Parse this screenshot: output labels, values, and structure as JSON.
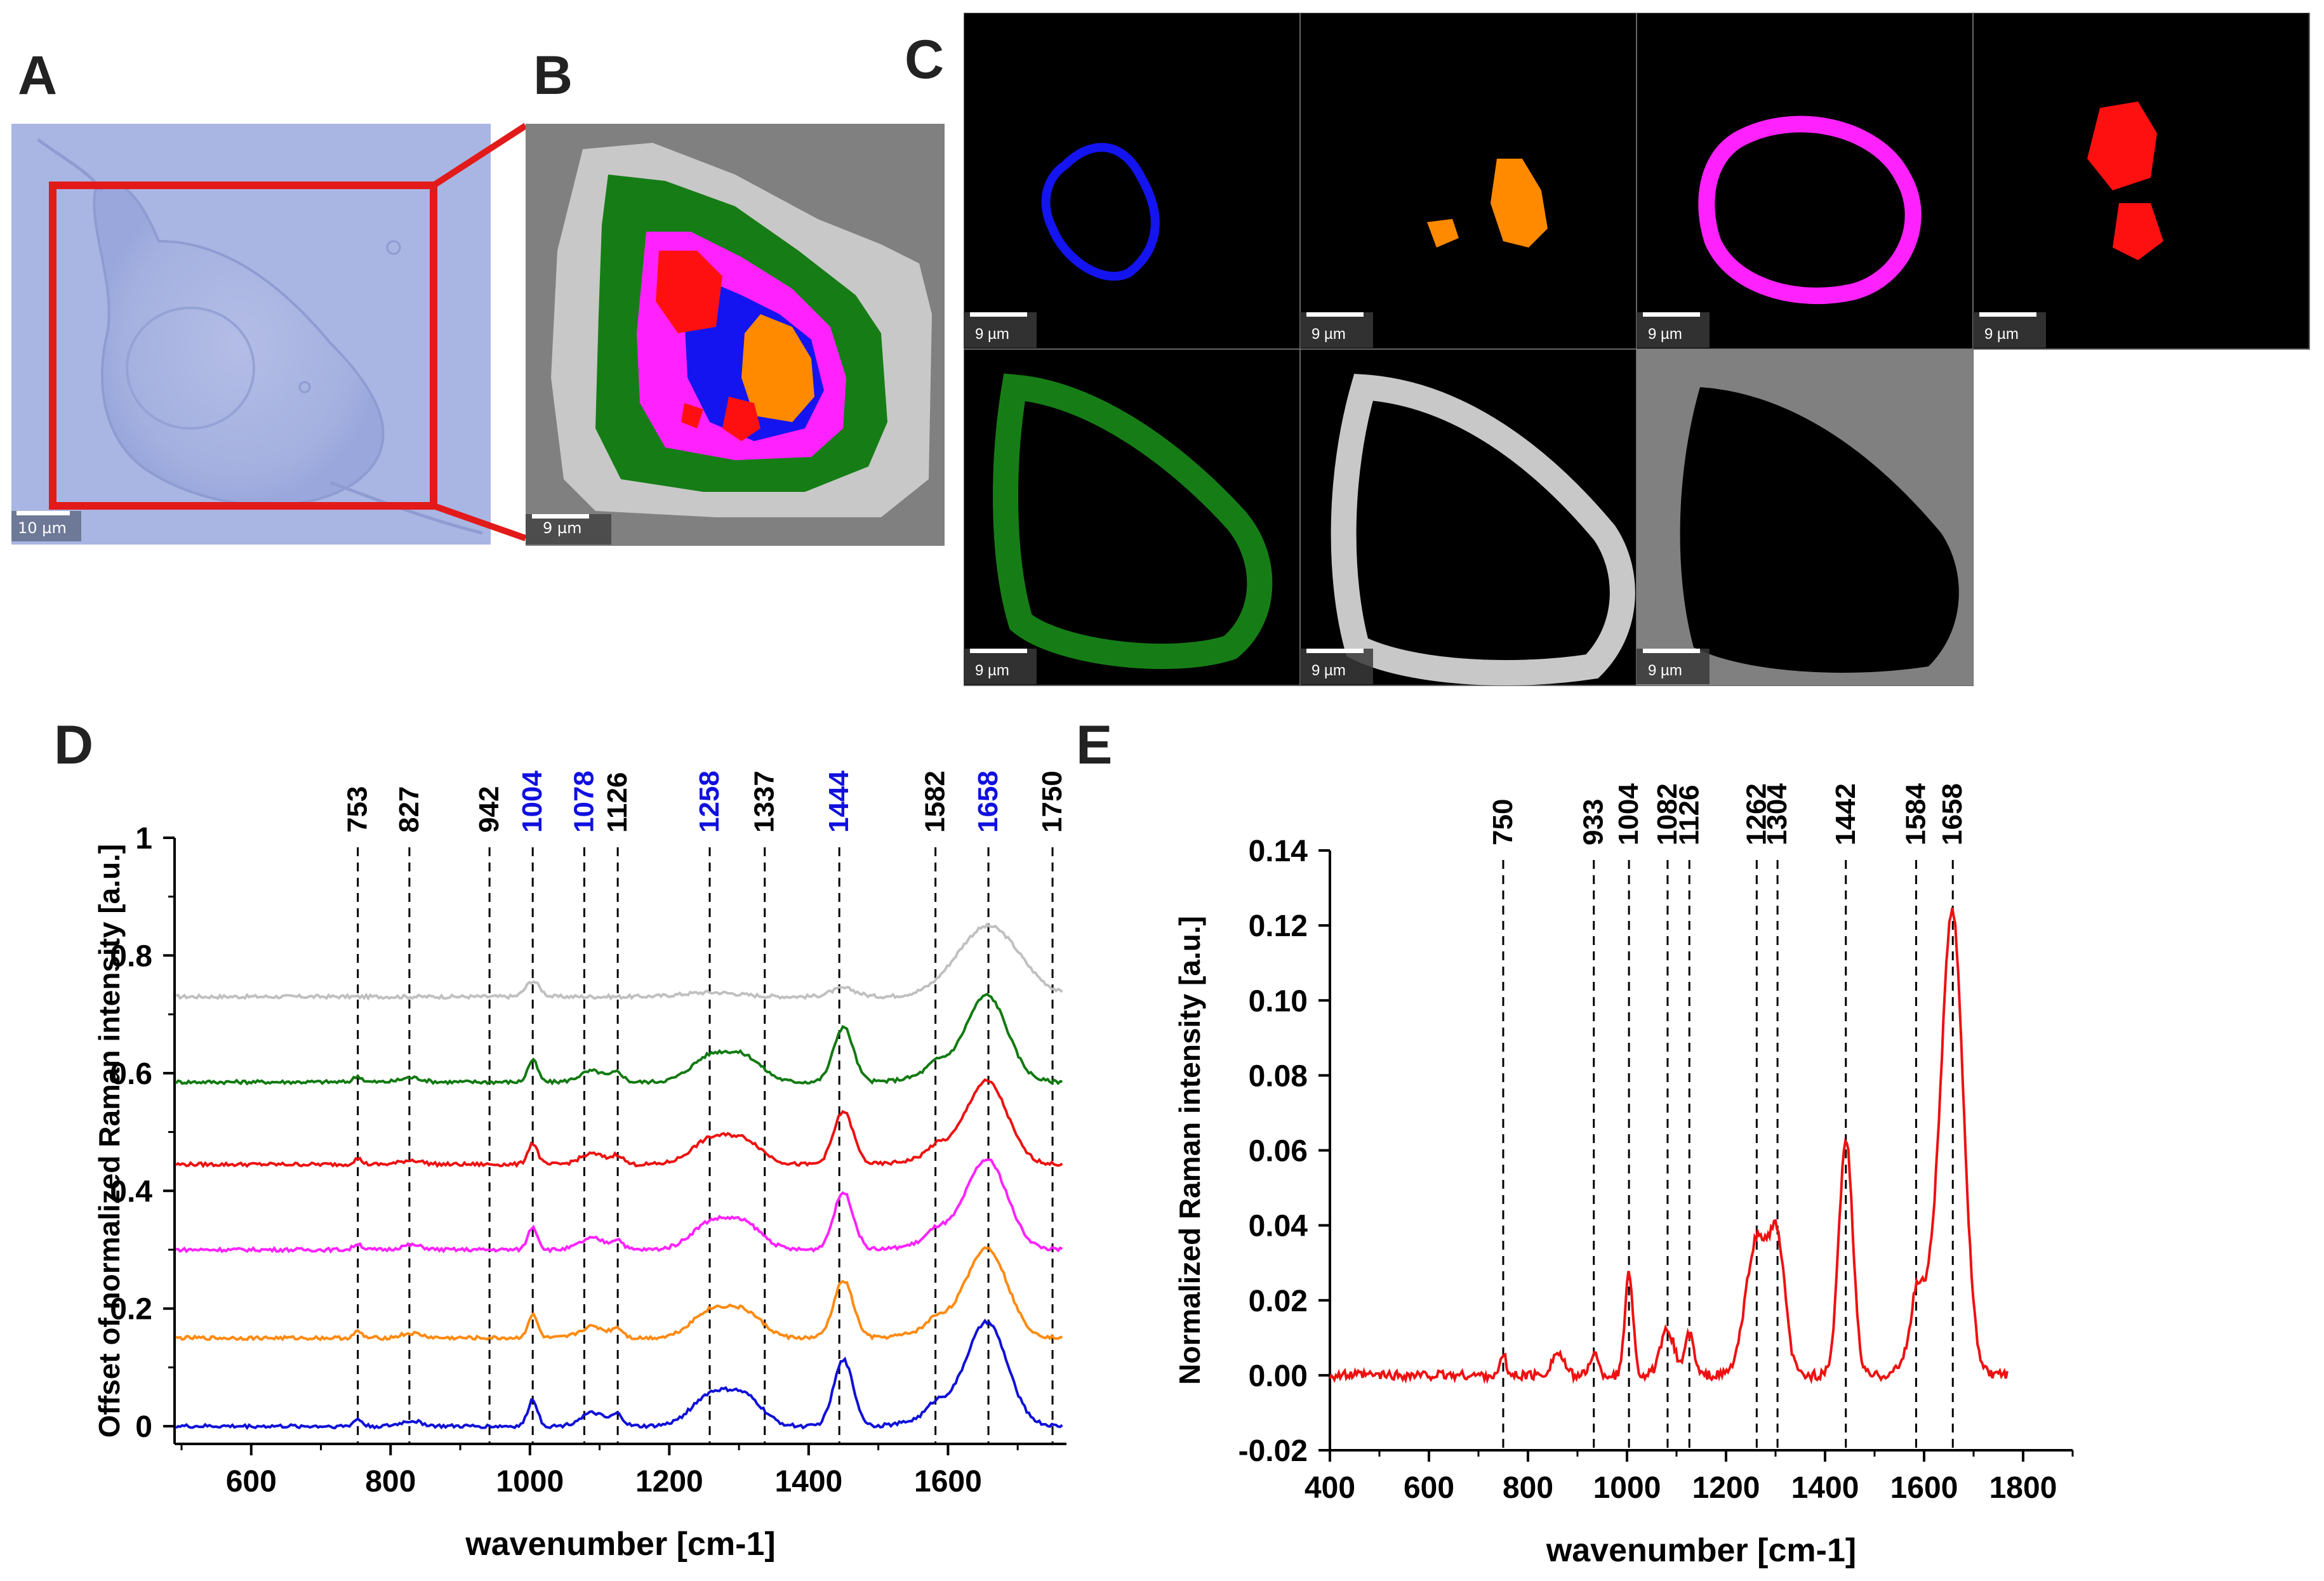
{
  "panels": {
    "A": {
      "label": "A",
      "scalebar": "10 µm",
      "colors": {
        "bg": "#a9b6e3",
        "box": "#e21a1a"
      }
    },
    "B": {
      "label": "B",
      "scalebar": "9 µm"
    },
    "C": {
      "label": "C",
      "tiles": [
        {
          "name": "blue",
          "color": "#1414f0",
          "scalebar": "9 µm"
        },
        {
          "name": "orange",
          "color": "#ff8a00",
          "scalebar": "9 µm"
        },
        {
          "name": "magenta",
          "color": "#ff22ff",
          "scalebar": "9 µm"
        },
        {
          "name": "red",
          "color": "#ff1010",
          "scalebar": "9 µm"
        },
        {
          "name": "green",
          "color": "#167d16",
          "scalebar": "9 µm"
        },
        {
          "name": "lightgray",
          "color": "#c8c8c8",
          "scalebar": "9 µm"
        },
        {
          "name": "gray",
          "color": "#808080",
          "scalebar": "9 µm"
        }
      ]
    },
    "D": {
      "label": "D"
    },
    "E": {
      "label": "E"
    }
  },
  "chart_data": [
    {
      "id": "D",
      "type": "line",
      "xlabel": "wavenumber [cm-1]",
      "ylabel": "Offset of normalized Raman intensity [a.u.]",
      "xlim": [
        490,
        1770
      ],
      "ylim": [
        -0.03,
        1.0
      ],
      "xticks": [
        600,
        800,
        1000,
        1200,
        1400,
        1600
      ],
      "yticks": [
        0,
        0.2,
        0.4,
        0.6,
        0.8,
        1
      ],
      "peak_markers": [
        {
          "label": "753",
          "x": 753,
          "color": "#000000"
        },
        {
          "label": "827",
          "x": 827,
          "color": "#000000"
        },
        {
          "label": "942",
          "x": 942,
          "color": "#000000"
        },
        {
          "label": "1004",
          "x": 1004,
          "color": "#1010e0"
        },
        {
          "label": "1078",
          "x": 1078,
          "color": "#1010e0"
        },
        {
          "label": "1126",
          "x": 1126,
          "color": "#000000"
        },
        {
          "label": "1258",
          "x": 1258,
          "color": "#1010e0"
        },
        {
          "label": "1337",
          "x": 1337,
          "color": "#000000"
        },
        {
          "label": "1444",
          "x": 1444,
          "color": "#1010e0"
        },
        {
          "label": "1582",
          "x": 1582,
          "color": "#000000"
        },
        {
          "label": "1658",
          "x": 1658,
          "color": "#1010e0"
        },
        {
          "label": "1750",
          "x": 1750,
          "color": "#000000"
        }
      ],
      "series": [
        {
          "name": "lightgray",
          "color": "#c0c0c0",
          "offset": 0.73,
          "scale": 0.12
        },
        {
          "name": "green",
          "color": "#127a12",
          "offset": 0.585,
          "scale": 0.125
        },
        {
          "name": "red",
          "color": "#ee1111",
          "offset": 0.445,
          "scale": 0.12
        },
        {
          "name": "magenta",
          "color": "#ff22ff",
          "offset": 0.3,
          "scale": 0.13
        },
        {
          "name": "orange",
          "color": "#ff8a10",
          "offset": 0.15,
          "scale": 0.13
        },
        {
          "name": "blue",
          "color": "#1010d8",
          "offset": 0.0,
          "scale": 0.15
        }
      ]
    },
    {
      "id": "E",
      "type": "line",
      "xlabel": "wavenumber [cm-1]",
      "ylabel": "Normalized Raman intensity [a.u.]",
      "xlim": [
        400,
        1900
      ],
      "ylim": [
        -0.02,
        0.14
      ],
      "xticks": [
        400,
        600,
        800,
        1000,
        1200,
        1400,
        1600,
        1800
      ],
      "yticks": [
        -0.02,
        0.0,
        0.02,
        0.04,
        0.06,
        0.08,
        0.1,
        0.12,
        0.14
      ],
      "ytick_labels": [
        "-0.02",
        "0.00",
        "0.02",
        "0.04",
        "0.06",
        "0.08",
        "0.10",
        "0.12",
        "0.14"
      ],
      "peak_markers": [
        {
          "label": "750",
          "x": 750
        },
        {
          "label": "933",
          "x": 933
        },
        {
          "label": "1004",
          "x": 1004
        },
        {
          "label": "1082",
          "x": 1082
        },
        {
          "label": "1126",
          "x": 1126
        },
        {
          "label": "1262",
          "x": 1262
        },
        {
          "label": "1304",
          "x": 1304
        },
        {
          "label": "1442",
          "x": 1442
        },
        {
          "label": "1584",
          "x": 1584
        },
        {
          "label": "1658",
          "x": 1658
        }
      ],
      "series": [
        {
          "name": "spectrum",
          "color": "#ee1111",
          "x_range": [
            400,
            1770
          ]
        }
      ]
    }
  ]
}
